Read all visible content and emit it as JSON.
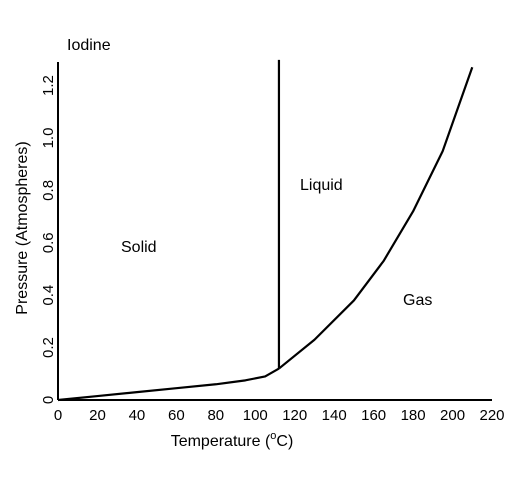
{
  "chart_data": {
    "type": "line",
    "title": "Iodine",
    "xlabel_main": "Temperature (",
    "xlabel_sup": "o",
    "xlabel_end": "C)",
    "ylabel": "Pressure (Atmospheres)",
    "xlim": [
      0,
      220
    ],
    "ylim": [
      0,
      1.3
    ],
    "x_ticks": [
      "0",
      "20",
      "40",
      "60",
      "80",
      "100",
      "120",
      "140",
      "160",
      "180",
      "200",
      "220"
    ],
    "y_ticks": [
      "0",
      "0.2",
      "0.4",
      "0.6",
      "0.8",
      "1.0",
      "1.2"
    ],
    "regions": [
      "Solid",
      "Liquid",
      "Gas"
    ],
    "series": [
      {
        "id": "sublimation",
        "x": [
          0,
          20,
          40,
          60,
          80,
          95,
          105,
          112
        ],
        "y": [
          0.0,
          0.015,
          0.03,
          0.045,
          0.06,
          0.075,
          0.09,
          0.12
        ]
      },
      {
        "id": "melting",
        "x": [
          112,
          112,
          112
        ],
        "y": [
          0.12,
          1.0,
          1.3
        ]
      },
      {
        "id": "vaporization",
        "x": [
          112,
          130,
          150,
          165,
          180,
          195,
          210
        ],
        "y": [
          0.12,
          0.23,
          0.38,
          0.53,
          0.72,
          0.95,
          1.27
        ]
      }
    ],
    "colors": {
      "line": "#000000",
      "axis": "#000000",
      "background": "#ffffff"
    },
    "grid": false,
    "legend": "none"
  }
}
